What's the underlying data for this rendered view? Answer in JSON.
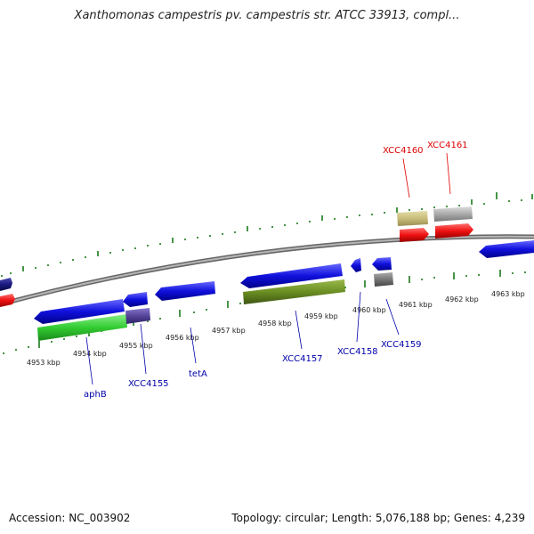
{
  "header": {
    "title": "Xanthomonas campestris pv. campestris str. ATCC 33913, compl..."
  },
  "footer": {
    "accession": "Accession: NC_003902",
    "summary": "Topology: circular; Length: 5,076,188 bp; Genes: 4,239"
  },
  "scale_labels": [
    "4953 kbp",
    "4954 kbp",
    "4955 kbp",
    "4956 kbp",
    "4957 kbp",
    "4958 kbp",
    "4959 kbp",
    "4960 kbp",
    "4961 kbp",
    "4962 kbp",
    "4963 kbp"
  ],
  "genes": [
    {
      "label": "aphB",
      "color": "#0000aa"
    },
    {
      "label": "XCC4155",
      "color": "#0000aa"
    },
    {
      "label": "tetA",
      "color": "#0000aa"
    },
    {
      "label": "XCC4157",
      "color": "#0000aa"
    },
    {
      "label": "XCC4158",
      "color": "#0000aa"
    },
    {
      "label": "XCC4159",
      "color": "#0000aa"
    },
    {
      "label": "XCC4160",
      "color": "#dd0000"
    },
    {
      "label": "XCC4161",
      "color": "#dd0000"
    }
  ],
  "colors": {
    "backbone": "#888888",
    "scale_ticks": "#1a7a1a",
    "cds_forward": "#1010dd",
    "cds_reverse": "#ee1111",
    "gene_green": "#33cc33",
    "gene_olive": "#6b8e23",
    "gene_tan": "#c8bd7a",
    "gene_grey": "#aaaaaa",
    "gene_purple": "#554499",
    "gene_navy": "#1a1a80"
  }
}
